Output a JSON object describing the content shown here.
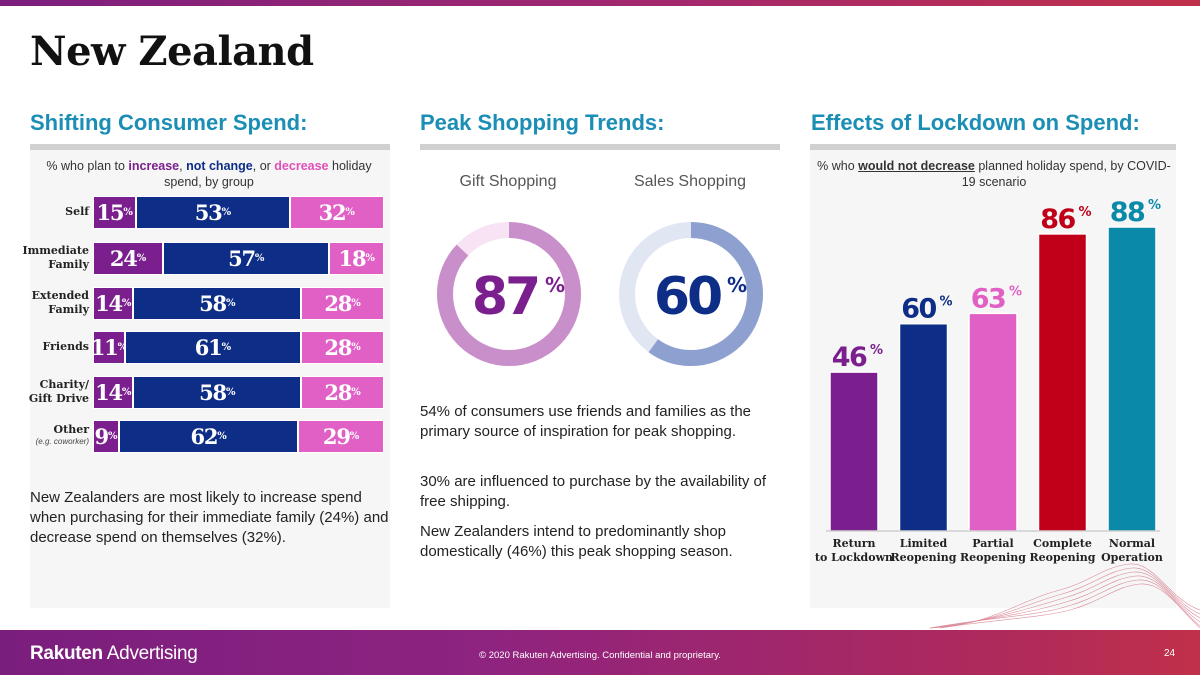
{
  "page": {
    "title": "New Zealand"
  },
  "panels": {
    "consumer_spend": {
      "title": "Shifting Consumer Spend:",
      "subtitle": {
        "prefix": "% who plan to ",
        "increase": "increase",
        "sep1": ", ",
        "not_change": "not change",
        "sep2": ", or ",
        "decrease": "decrease",
        "suffix": " holiday spend, by group"
      },
      "note": "New Zealanders are most likely to increase spend when purchasing for their immediate family (24%) and decrease spend on themselves (32%)."
    },
    "peak": {
      "title": "Peak Shopping Trends:",
      "gift_label": "Gift Shopping",
      "sales_label": "Sales Shopping",
      "paragraphs": [
        "54% of consumers use friends and families as the primary source of inspiration for peak shopping.",
        "30% are influenced to purchase by the availability of free shipping.",
        "New Zealanders intend to predominantly shop domestically (46%) this peak shopping season."
      ]
    },
    "lockdown": {
      "title": "Effects of Lockdown on Spend:",
      "subtitle": {
        "prefix": "% who ",
        "emphasis": "would not decrease",
        "suffix": " planned holiday spend, by COVID-19 scenario"
      }
    }
  },
  "chart_data": [
    {
      "type": "bar",
      "orientation": "horizontal-stacked",
      "categories": [
        "Self",
        "Immediate Family",
        "Extended Family",
        "Friends",
        "Charity/ Gift Drive",
        "Other"
      ],
      "category_notes": [
        "",
        "",
        "",
        "",
        "",
        "(e.g. coworker)"
      ],
      "series": [
        {
          "name": "increase",
          "values": [
            15,
            24,
            14,
            11,
            14,
            9
          ],
          "color": "#7b1f8e"
        },
        {
          "name": "not change",
          "values": [
            53,
            57,
            58,
            61,
            58,
            62
          ],
          "color": "#0d2d87"
        },
        {
          "name": "decrease",
          "values": [
            32,
            18,
            28,
            28,
            28,
            29
          ],
          "color": "#e160c6"
        }
      ],
      "unit": "%"
    },
    {
      "type": "pie",
      "variant": "donut",
      "items": [
        {
          "name": "Gift Shopping",
          "value": 87,
          "color": "#c98fca",
          "value_color": "#7b1f8e"
        },
        {
          "name": "Sales Shopping",
          "value": 60,
          "color": "#8ea0cf",
          "value_color": "#0d2d87"
        }
      ],
      "unit": "%"
    },
    {
      "type": "bar",
      "categories": [
        "Return to Lockdown",
        "Limited Reopening",
        "Partial Reopening",
        "Complete Reopening",
        "Normal Operation"
      ],
      "values": [
        46,
        60,
        63,
        86,
        88
      ],
      "colors": [
        "#7b1f8e",
        "#0d2d87",
        "#e160c6",
        "#c00018",
        "#0a8aa8"
      ],
      "unit": "%",
      "ylim": [
        0,
        100
      ],
      "grid": false
    }
  ],
  "footer": {
    "logo_bold": "Rakuten",
    "logo_rest": " Advertising",
    "copyright": "© 2020 Rakuten Advertising. Confidential and proprietary.",
    "page_number": "24"
  }
}
